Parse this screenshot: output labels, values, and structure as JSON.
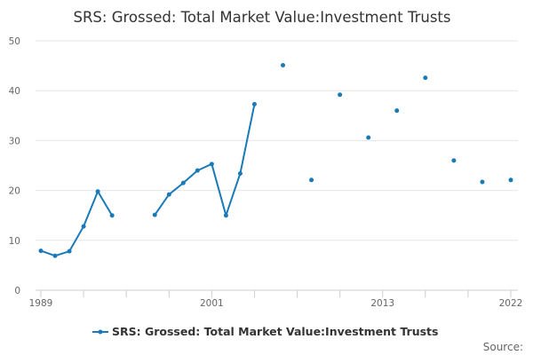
{
  "chart_data": {
    "type": "line",
    "title": "SRS: Grossed: Total Market Value:Investment Trusts",
    "xlabel": "",
    "ylabel": "",
    "xlim": [
      1989,
      2022
    ],
    "ylim": [
      0,
      50
    ],
    "x_ticks": [
      1989,
      2001,
      2013,
      2022
    ],
    "y_ticks": [
      0,
      10,
      20,
      30,
      40,
      50
    ],
    "grid": "horizontal",
    "legend_position": "bottom",
    "series_color": "#1a7ab8",
    "series": [
      {
        "name": "SRS: Grossed: Total Market Value:Investment Trusts",
        "x": [
          1989,
          1990,
          1991,
          1992,
          1993,
          1994,
          1995,
          1996,
          1997,
          1998,
          1999,
          2000,
          2001,
          2002,
          2003,
          2004,
          2005,
          2006,
          2007,
          2008,
          2009,
          2010,
          2011,
          2012,
          2013,
          2014,
          2015,
          2016,
          2017,
          2018,
          2019,
          2020,
          2021,
          2022
        ],
        "values": [
          7.9,
          6.9,
          7.8,
          12.8,
          19.8,
          15.0,
          null,
          null,
          15.1,
          19.2,
          21.5,
          24.0,
          25.3,
          15.0,
          23.4,
          37.3,
          null,
          45.1,
          null,
          22.1,
          null,
          39.2,
          null,
          30.6,
          null,
          36.0,
          null,
          42.6,
          null,
          26.0,
          null,
          21.7,
          null,
          22.1
        ]
      }
    ]
  },
  "footer": {
    "source_label": "Source:"
  }
}
